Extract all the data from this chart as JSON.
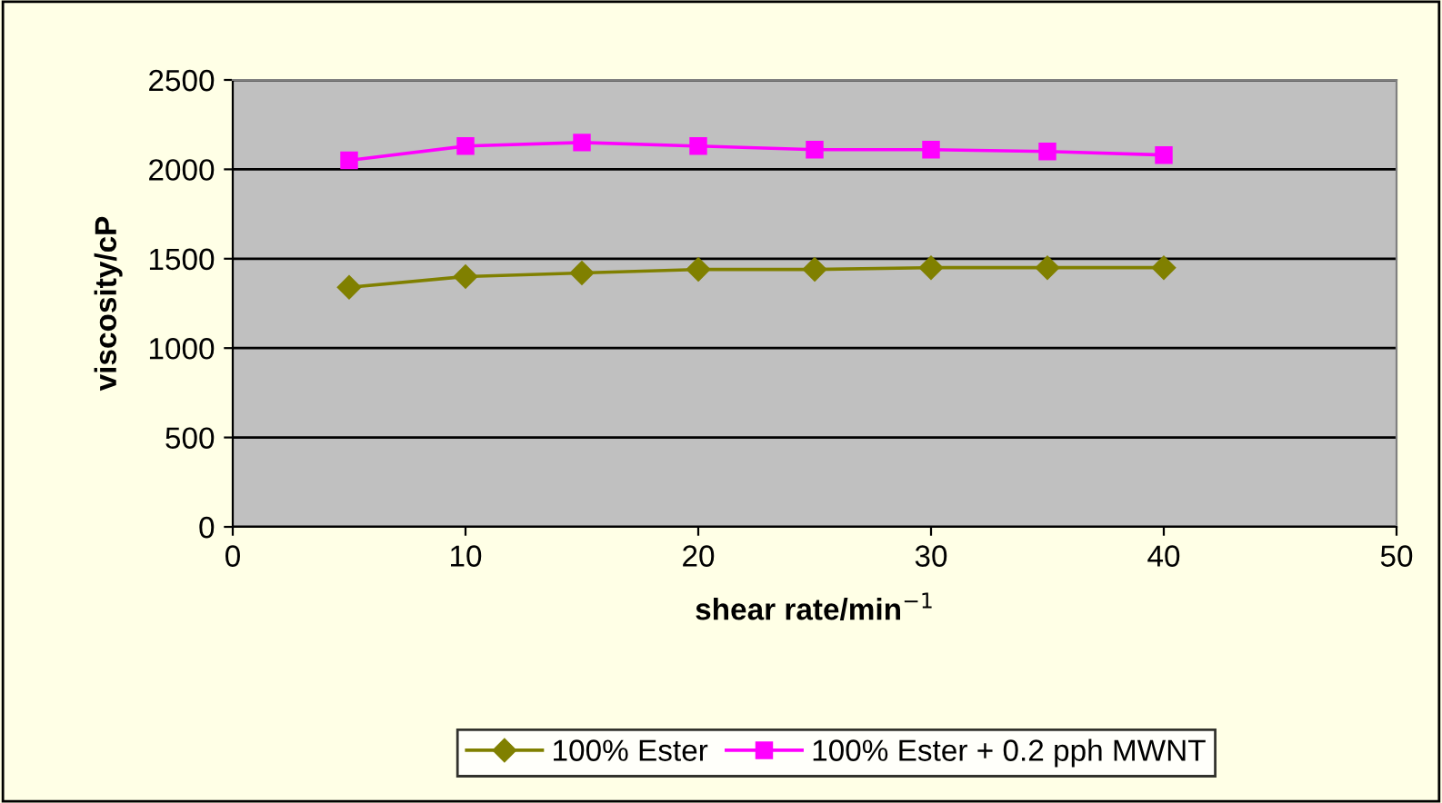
{
  "chart_data": {
    "type": "line",
    "xlabel": "shear rate/min$^{−1}$",
    "ylabel": "viscosity/cP",
    "x": [
      5,
      10,
      15,
      20,
      25,
      30,
      35,
      40
    ],
    "series": [
      {
        "name": "100% Ester",
        "color": "#808000",
        "marker": "diamond",
        "values": [
          1340,
          1400,
          1420,
          1440,
          1440,
          1450,
          1450,
          1450
        ]
      },
      {
        "name": "100% Ester + 0.2 pph MWNT",
        "color": "#ff00ff",
        "marker": "square",
        "values": [
          2050,
          2130,
          2150,
          2130,
          2110,
          2110,
          2100,
          2080
        ]
      }
    ],
    "xlim": [
      0,
      50
    ],
    "xticks": [
      0,
      10,
      20,
      30,
      40,
      50
    ],
    "ylim": [
      0,
      2500
    ],
    "yticks": [
      0,
      500,
      1000,
      1500,
      2000,
      2500
    ],
    "grid": "y",
    "legend": "bottom"
  }
}
